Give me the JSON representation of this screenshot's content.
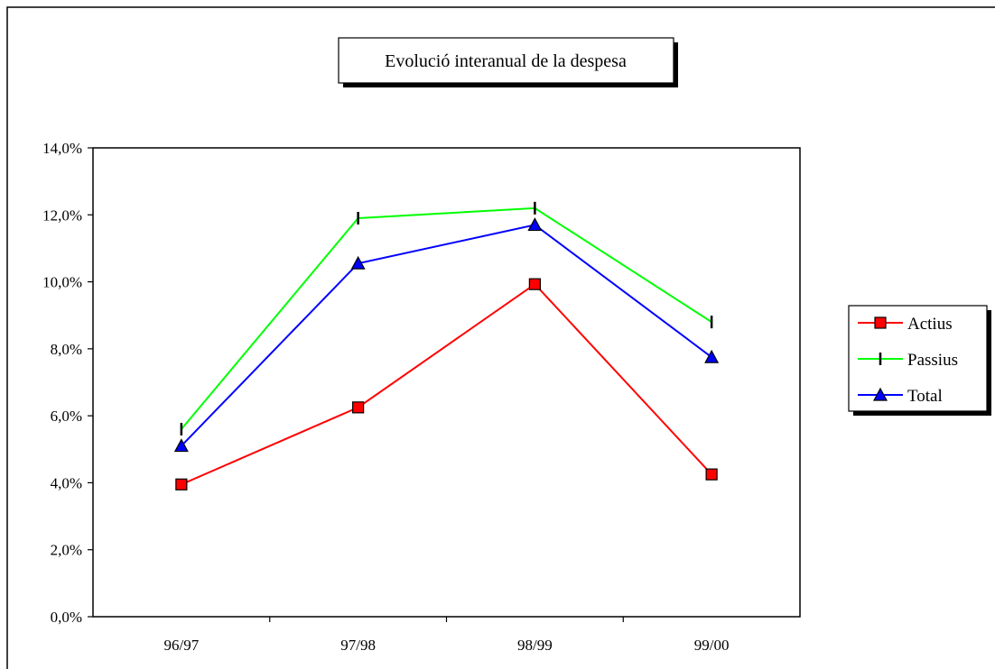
{
  "chart_data": {
    "type": "line",
    "title": "Evolució interanual de la despesa",
    "xlabel": "",
    "ylabel": "",
    "categories": [
      "96/97",
      "97/98",
      "98/99",
      "99/00"
    ],
    "ylim": [
      0,
      14
    ],
    "yticks": [
      "0,0%",
      "2,0%",
      "4,0%",
      "6,0%",
      "8,0%",
      "10,0%",
      "12,0%",
      "14,0%"
    ],
    "grid": false,
    "legend_position": "right",
    "series": [
      {
        "name": "Actius",
        "values": [
          3.95,
          6.25,
          9.93,
          4.25
        ],
        "color": "#ff0000",
        "marker": "square",
        "marker_fill": "#ff0000"
      },
      {
        "name": "Passius",
        "values": [
          5.6,
          11.9,
          12.2,
          8.8
        ],
        "color": "#00ff00",
        "marker": "vertical-tick",
        "marker_fill": "#000000"
      },
      {
        "name": "Total",
        "values": [
          5.1,
          10.55,
          11.7,
          7.75
        ],
        "color": "#0000ff",
        "marker": "triangle",
        "marker_fill": "#0000ff"
      }
    ]
  }
}
